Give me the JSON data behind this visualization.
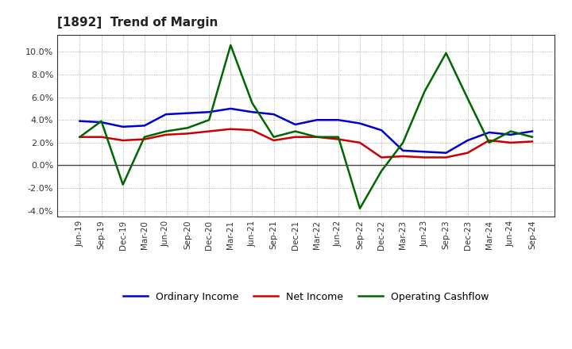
{
  "title": "[1892]  Trend of Margin",
  "x_labels": [
    "Jun-19",
    "Sep-19",
    "Dec-19",
    "Mar-20",
    "Jun-20",
    "Sep-20",
    "Dec-20",
    "Mar-21",
    "Jun-21",
    "Sep-21",
    "Dec-21",
    "Mar-22",
    "Jun-22",
    "Sep-22",
    "Dec-22",
    "Mar-23",
    "Jun-23",
    "Sep-23",
    "Dec-23",
    "Mar-24",
    "Jun-24",
    "Sep-24"
  ],
  "ordinary_income": [
    3.9,
    3.8,
    3.4,
    3.5,
    4.5,
    4.6,
    4.7,
    5.0,
    4.7,
    4.5,
    3.6,
    4.0,
    4.0,
    3.7,
    3.1,
    1.3,
    1.2,
    1.1,
    2.2,
    2.9,
    2.7,
    3.0
  ],
  "net_income": [
    2.5,
    2.5,
    2.2,
    2.3,
    2.7,
    2.8,
    3.0,
    3.2,
    3.1,
    2.2,
    2.5,
    2.5,
    2.3,
    2.0,
    0.7,
    0.8,
    0.7,
    0.7,
    1.1,
    2.2,
    2.0,
    2.1
  ],
  "operating_cashflow": [
    2.5,
    3.9,
    -1.7,
    2.5,
    3.0,
    3.3,
    4.0,
    10.6,
    5.5,
    2.5,
    3.0,
    2.5,
    2.5,
    -3.8,
    -0.5,
    2.0,
    6.5,
    9.9,
    5.9,
    2.0,
    3.0,
    2.5
  ],
  "ylim": [
    -4.5,
    11.5
  ],
  "yticks": [
    -4.0,
    -2.0,
    0.0,
    2.0,
    4.0,
    6.0,
    8.0,
    10.0
  ],
  "colors": {
    "ordinary_income": "#0000cc",
    "net_income": "#cc0000",
    "operating_cashflow": "#006600"
  },
  "background_color": "#ffffff",
  "plot_bg_color": "#ffffff",
  "grid_color": "#999999",
  "legend_labels": [
    "Ordinary Income",
    "Net Income",
    "Operating Cashflow"
  ]
}
